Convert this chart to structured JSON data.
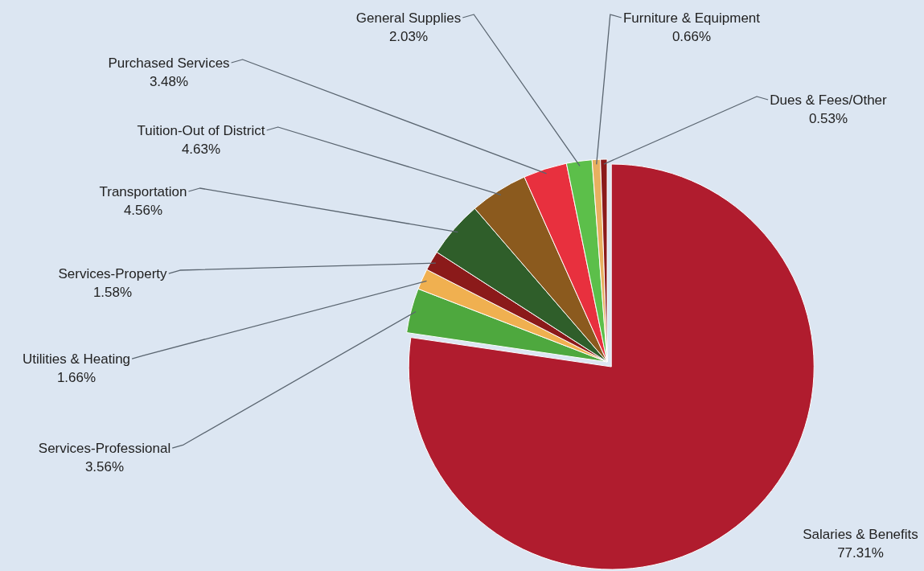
{
  "chart_data": {
    "type": "pie",
    "categories": [
      "Salaries & Benefits",
      "Services-Professional",
      "Utilities & Heating",
      "Services-Property",
      "Transportation",
      "Tuition-Out of District",
      "Purchased Services",
      "General Supplies",
      "Furniture & Equipment",
      "Dues & Fees/Other"
    ],
    "values": [
      77.31,
      3.56,
      1.66,
      1.58,
      4.56,
      4.63,
      3.48,
      2.03,
      0.66,
      0.53
    ],
    "value_labels": [
      "77.31%",
      "3.56%",
      "1.66%",
      "1.58%",
      "4.56%",
      "4.63%",
      "3.48%",
      "2.03%",
      "0.66%",
      "0.53%"
    ],
    "colors": [
      "#b01c2e",
      "#4ea83e",
      "#f0b050",
      "#8b1a1a",
      "#2f5e2a",
      "#8b5a1e",
      "#e8303e",
      "#5cbf4a",
      "#e8b060",
      "#8b1a1a"
    ]
  }
}
